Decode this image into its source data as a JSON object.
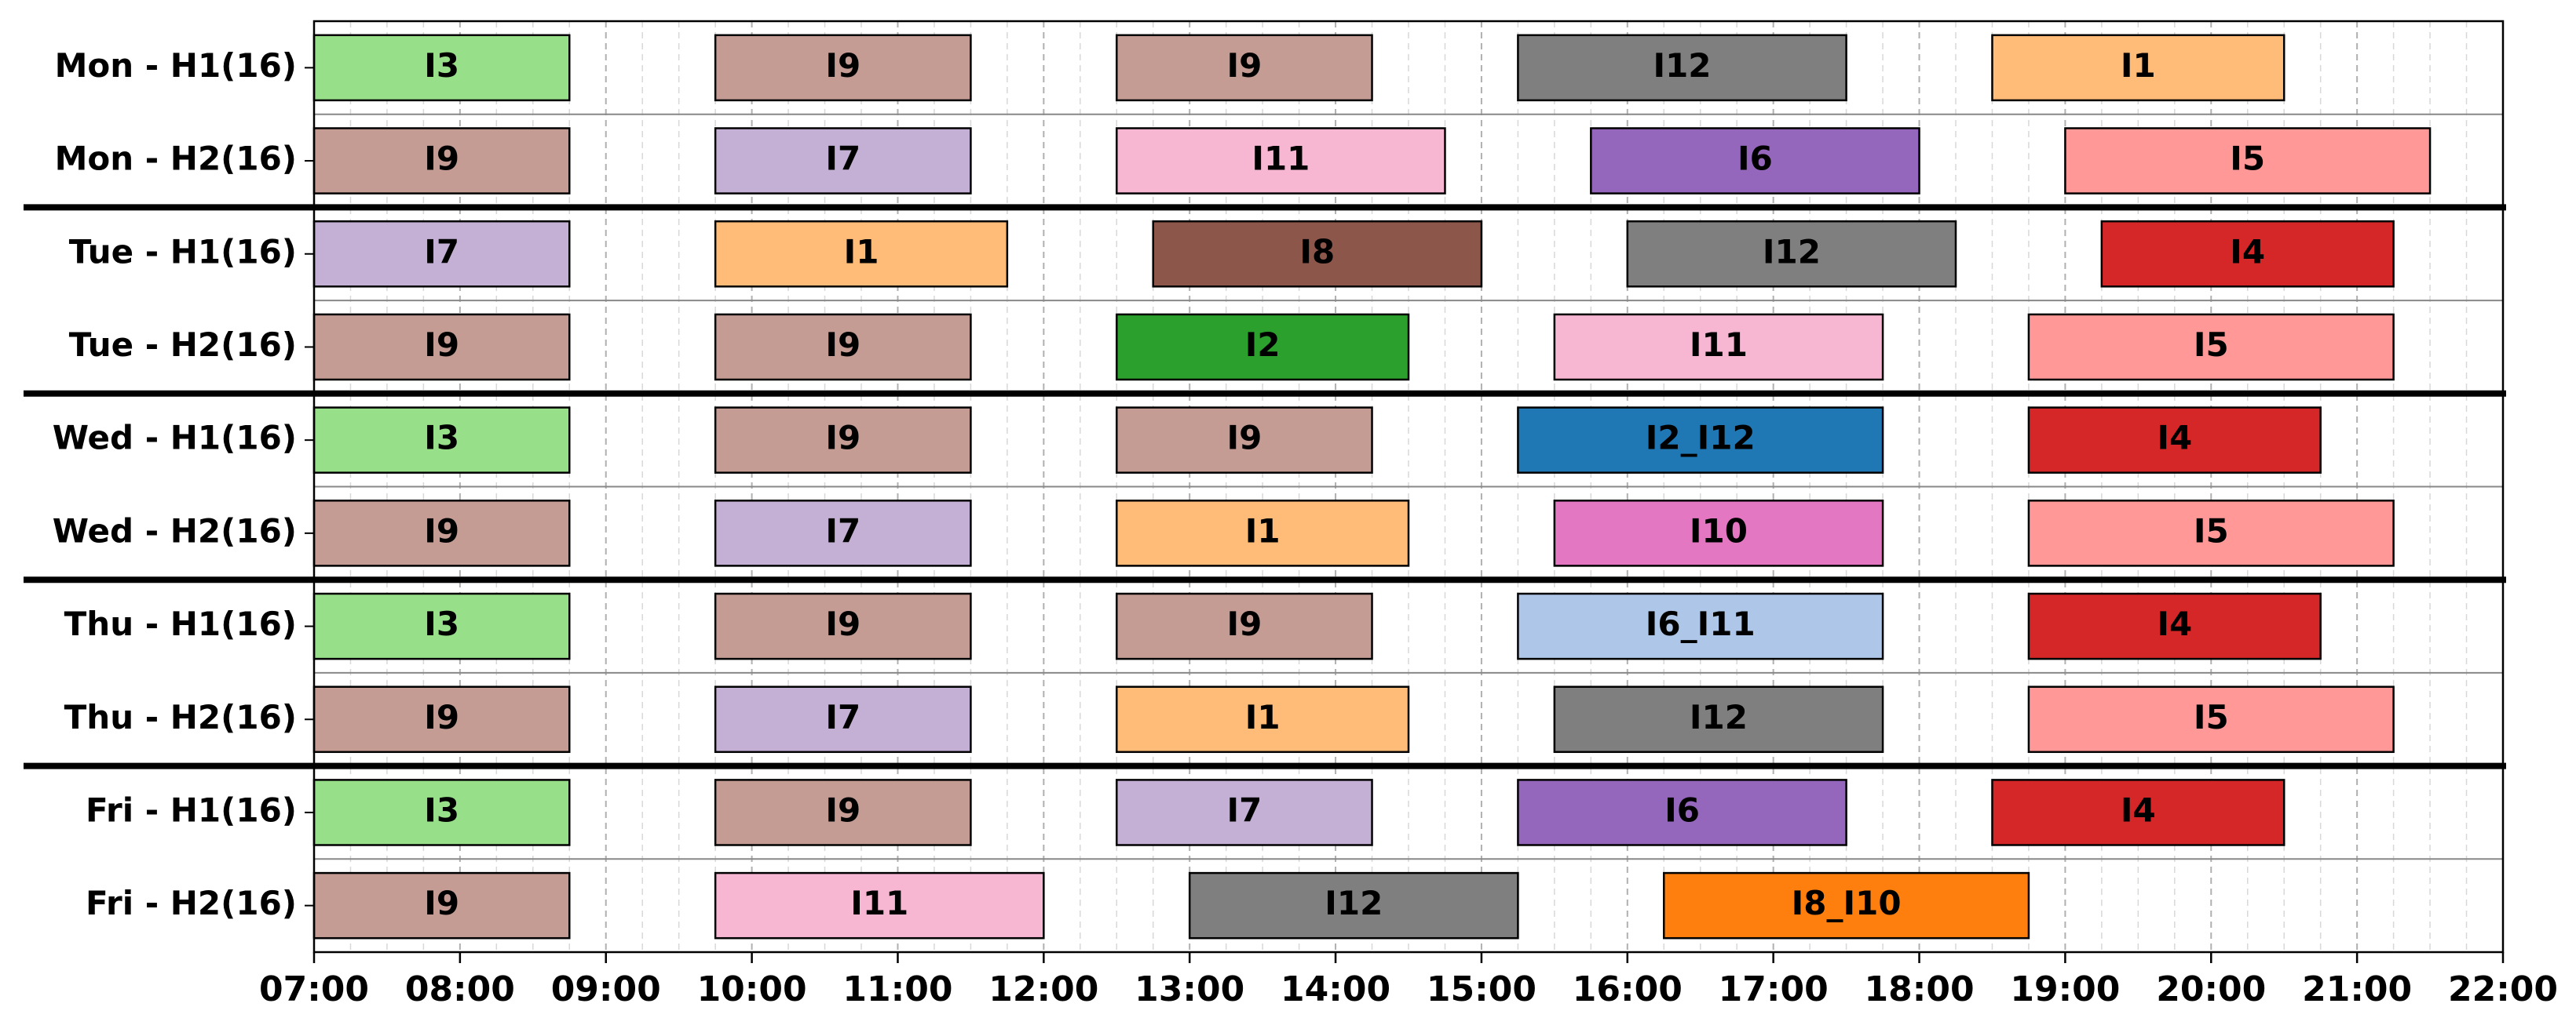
{
  "chart_data": {
    "type": "gantt",
    "rows": [
      "Mon - H1(16)",
      "Mon - H2(16)",
      "Tue - H1(16)",
      "Tue - H2(16)",
      "Wed - H1(16)",
      "Wed - H2(16)",
      "Thu - H1(16)",
      "Thu - H2(16)",
      "Fri - H1(16)",
      "Fri - H2(16)"
    ],
    "xlim": [
      7,
      22
    ],
    "xticks": [
      {
        "value": 7,
        "label": "07:00"
      },
      {
        "value": 8,
        "label": "08:00"
      },
      {
        "value": 9,
        "label": "09:00"
      },
      {
        "value": 10,
        "label": "10:00"
      },
      {
        "value": 11,
        "label": "11:00"
      },
      {
        "value": 12,
        "label": "12:00"
      },
      {
        "value": 13,
        "label": "13:00"
      },
      {
        "value": 14,
        "label": "14:00"
      },
      {
        "value": 15,
        "label": "15:00"
      },
      {
        "value": 16,
        "label": "16:00"
      },
      {
        "value": 17,
        "label": "17:00"
      },
      {
        "value": 18,
        "label": "18:00"
      },
      {
        "value": 19,
        "label": "19:00"
      },
      {
        "value": 20,
        "label": "20:00"
      },
      {
        "value": 21,
        "label": "21:00"
      },
      {
        "value": 22,
        "label": "22:00"
      }
    ],
    "grid": true,
    "minor_grid_per_tick": 4,
    "tasks": [
      {
        "row": 0,
        "label": "I3",
        "start": 7,
        "end": 8.75,
        "color": "#98df8a"
      },
      {
        "row": 0,
        "label": "I9",
        "start": 9.75,
        "end": 11.5,
        "color": "#c49c94"
      },
      {
        "row": 0,
        "label": "I9",
        "start": 12.5,
        "end": 14.25,
        "color": "#c49c94"
      },
      {
        "row": 0,
        "label": "I12",
        "start": 15.25,
        "end": 17.5,
        "color": "#7f7f7f"
      },
      {
        "row": 0,
        "label": "I1",
        "start": 18.5,
        "end": 20.5,
        "color": "#ffbb78"
      },
      {
        "row": 1,
        "label": "I9",
        "start": 7,
        "end": 8.75,
        "color": "#c49c94"
      },
      {
        "row": 1,
        "label": "I7",
        "start": 9.75,
        "end": 11.5,
        "color": "#c5b0d5"
      },
      {
        "row": 1,
        "label": "I11",
        "start": 12.5,
        "end": 14.75,
        "color": "#f7b6d2"
      },
      {
        "row": 1,
        "label": "I6",
        "start": 15.75,
        "end": 18,
        "color": "#9467bd"
      },
      {
        "row": 1,
        "label": "I5",
        "start": 19,
        "end": 21.5,
        "color": "#ff9896"
      },
      {
        "row": 2,
        "label": "I7",
        "start": 7,
        "end": 8.75,
        "color": "#c5b0d5"
      },
      {
        "row": 2,
        "label": "I1",
        "start": 9.75,
        "end": 11.75,
        "color": "#ffbb78"
      },
      {
        "row": 2,
        "label": "I8",
        "start": 12.75,
        "end": 15,
        "color": "#8c564b"
      },
      {
        "row": 2,
        "label": "I12",
        "start": 16,
        "end": 18.25,
        "color": "#7f7f7f"
      },
      {
        "row": 2,
        "label": "I4",
        "start": 19.25,
        "end": 21.25,
        "color": "#d62728"
      },
      {
        "row": 3,
        "label": "I9",
        "start": 7,
        "end": 8.75,
        "color": "#c49c94"
      },
      {
        "row": 3,
        "label": "I9",
        "start": 9.75,
        "end": 11.5,
        "color": "#c49c94"
      },
      {
        "row": 3,
        "label": "I2",
        "start": 12.5,
        "end": 14.5,
        "color": "#2ca02c"
      },
      {
        "row": 3,
        "label": "I11",
        "start": 15.5,
        "end": 17.75,
        "color": "#f7b6d2"
      },
      {
        "row": 3,
        "label": "I5",
        "start": 18.75,
        "end": 21.25,
        "color": "#ff9896"
      },
      {
        "row": 4,
        "label": "I3",
        "start": 7,
        "end": 8.75,
        "color": "#98df8a"
      },
      {
        "row": 4,
        "label": "I9",
        "start": 9.75,
        "end": 11.5,
        "color": "#c49c94"
      },
      {
        "row": 4,
        "label": "I9",
        "start": 12.5,
        "end": 14.25,
        "color": "#c49c94"
      },
      {
        "row": 4,
        "label": "I2_I12",
        "start": 15.25,
        "end": 17.75,
        "color": "#1f77b4"
      },
      {
        "row": 4,
        "label": "I4",
        "start": 18.75,
        "end": 20.75,
        "color": "#d62728"
      },
      {
        "row": 5,
        "label": "I9",
        "start": 7,
        "end": 8.75,
        "color": "#c49c94"
      },
      {
        "row": 5,
        "label": "I7",
        "start": 9.75,
        "end": 11.5,
        "color": "#c5b0d5"
      },
      {
        "row": 5,
        "label": "I1",
        "start": 12.5,
        "end": 14.5,
        "color": "#ffbb78"
      },
      {
        "row": 5,
        "label": "I10",
        "start": 15.5,
        "end": 17.75,
        "color": "#e377c2"
      },
      {
        "row": 5,
        "label": "I5",
        "start": 18.75,
        "end": 21.25,
        "color": "#ff9896"
      },
      {
        "row": 6,
        "label": "I3",
        "start": 7,
        "end": 8.75,
        "color": "#98df8a"
      },
      {
        "row": 6,
        "label": "I9",
        "start": 9.75,
        "end": 11.5,
        "color": "#c49c94"
      },
      {
        "row": 6,
        "label": "I9",
        "start": 12.5,
        "end": 14.25,
        "color": "#c49c94"
      },
      {
        "row": 6,
        "label": "I6_I11",
        "start": 15.25,
        "end": 17.75,
        "color": "#aec7e8"
      },
      {
        "row": 6,
        "label": "I4",
        "start": 18.75,
        "end": 20.75,
        "color": "#d62728"
      },
      {
        "row": 7,
        "label": "I9",
        "start": 7,
        "end": 8.75,
        "color": "#c49c94"
      },
      {
        "row": 7,
        "label": "I7",
        "start": 9.75,
        "end": 11.5,
        "color": "#c5b0d5"
      },
      {
        "row": 7,
        "label": "I1",
        "start": 12.5,
        "end": 14.5,
        "color": "#ffbb78"
      },
      {
        "row": 7,
        "label": "I12",
        "start": 15.5,
        "end": 17.75,
        "color": "#7f7f7f"
      },
      {
        "row": 7,
        "label": "I5",
        "start": 18.75,
        "end": 21.25,
        "color": "#ff9896"
      },
      {
        "row": 8,
        "label": "I3",
        "start": 7,
        "end": 8.75,
        "color": "#98df8a"
      },
      {
        "row": 8,
        "label": "I9",
        "start": 9.75,
        "end": 11.5,
        "color": "#c49c94"
      },
      {
        "row": 8,
        "label": "I7",
        "start": 12.5,
        "end": 14.25,
        "color": "#c5b0d5"
      },
      {
        "row": 8,
        "label": "I6",
        "start": 15.25,
        "end": 17.5,
        "color": "#9467bd"
      },
      {
        "row": 8,
        "label": "I4",
        "start": 18.5,
        "end": 20.5,
        "color": "#d62728"
      },
      {
        "row": 9,
        "label": "I9",
        "start": 7,
        "end": 8.75,
        "color": "#c49c94"
      },
      {
        "row": 9,
        "label": "I11",
        "start": 9.75,
        "end": 12,
        "color": "#f7b6d2"
      },
      {
        "row": 9,
        "label": "I12",
        "start": 13,
        "end": 15.25,
        "color": "#7f7f7f"
      },
      {
        "row": 9,
        "label": "I8_I10",
        "start": 16.25,
        "end": 18.75,
        "color": "#ff7f0e"
      }
    ]
  }
}
